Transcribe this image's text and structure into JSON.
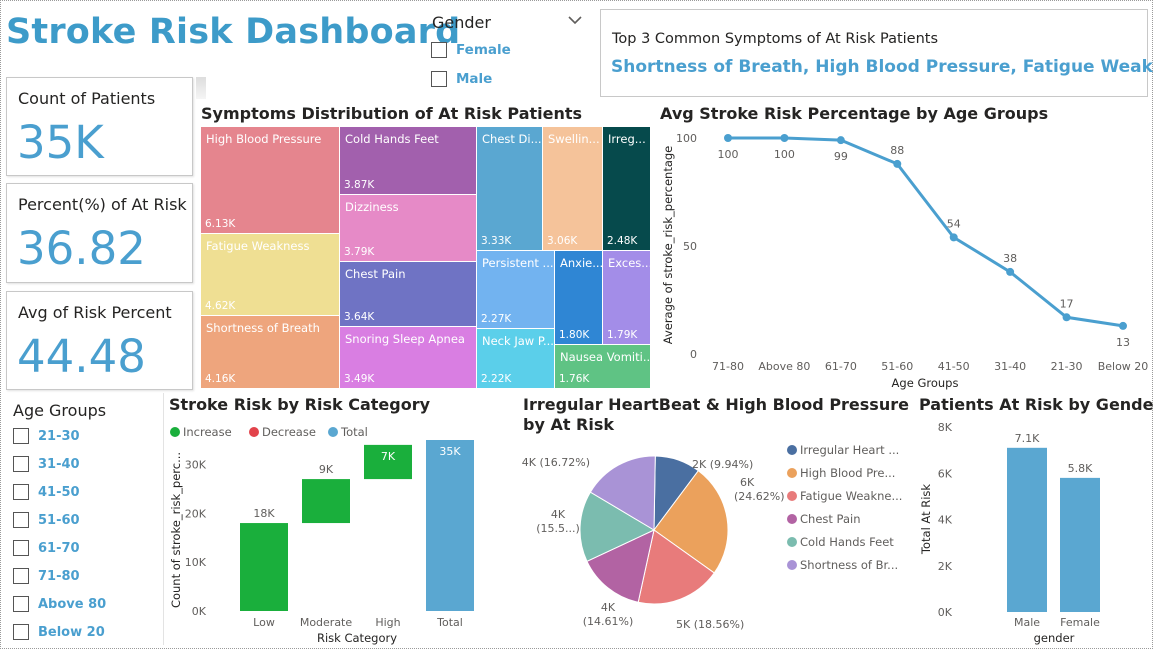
{
  "dashboard": {
    "title": "Stroke Risk Dashboard"
  },
  "kpis": [
    {
      "label": "Count of Patients",
      "value": "35K"
    },
    {
      "label": "Percent(%) of At Risk",
      "value": "36.82"
    },
    {
      "label": "Avg of Risk Percent",
      "value": "44.48"
    }
  ],
  "gender_slicer": {
    "title": "Gender",
    "options": [
      "Female",
      "Male"
    ]
  },
  "age_slicer": {
    "title": "Age Groups",
    "options": [
      "21-30",
      "31-40",
      "41-50",
      "51-60",
      "61-70",
      "71-80",
      "Above 80",
      "Below 20"
    ]
  },
  "top_symptoms": {
    "label": "Top 3 Common Symptoms of At Risk Patients",
    "value": "Shortness of Breath, High Blood Pressure, Fatigue Weakness"
  },
  "colors": {
    "accent": "#4a9fcf",
    "increase": "#1aaf3c",
    "decrease": "#e2434b",
    "total": "#5aa7d1",
    "line": "#4a9fcf"
  },
  "treemap": {
    "title": "Symptoms Distribution of At Risk Patients",
    "chart_data": {
      "type": "treemap",
      "items": [
        {
          "name": "High Blood Pressure",
          "value": "6.13K",
          "color": "#e5858e"
        },
        {
          "name": "Fatigue Weakness",
          "value": "4.62K",
          "color": "#efdf93"
        },
        {
          "name": "Shortness of Breath",
          "value": "4.16K",
          "color": "#eea57d"
        },
        {
          "name": "Cold Hands Feet",
          "value": "3.87K",
          "color": "#a260ad"
        },
        {
          "name": "Dizziness",
          "value": "3.79K",
          "color": "#e68ac7"
        },
        {
          "name": "Chest Pain",
          "value": "3.64K",
          "color": "#6f73c4"
        },
        {
          "name": "Snoring Sleep Apnea",
          "value": "3.49K",
          "color": "#d97ee2"
        },
        {
          "name": "Chest Di...",
          "value": "3.33K",
          "color": "#5aa7d1"
        },
        {
          "name": "Swellin...",
          "value": "3.06K",
          "color": "#f5c39a"
        },
        {
          "name": "Irreg...",
          "value": "2.48K",
          "color": "#064a4c"
        },
        {
          "name": "Persistent ...",
          "value": "2.27K",
          "color": "#72b3f0"
        },
        {
          "name": "Neck Jaw P...",
          "value": "2.22K",
          "color": "#5bcfea"
        },
        {
          "name": "Anxie...",
          "value": "1.80K",
          "color": "#2f86d4"
        },
        {
          "name": "Exces...",
          "value": "1.79K",
          "color": "#a38de8"
        },
        {
          "name": "Nausea Vomiti...",
          "value": "1.76K",
          "color": "#5fc384"
        }
      ]
    }
  },
  "line_chart": {
    "title": "Avg Stroke Risk Percentage by Age Groups",
    "chart_data": {
      "type": "line",
      "x": [
        "71-80",
        "Above 80",
        "61-70",
        "51-60",
        "41-50",
        "31-40",
        "21-30",
        "Below 20"
      ],
      "values": [
        100,
        100,
        99,
        88,
        54,
        38,
        17,
        13
      ],
      "xlabel": "Age Groups",
      "ylabel": "Average of stroke_risk_percentage",
      "yticks": [
        0,
        50,
        100
      ],
      "ylim": [
        0,
        100
      ]
    }
  },
  "waterfall": {
    "title": "Stroke Risk by Risk Category",
    "legend": [
      "Increase",
      "Decrease",
      "Total"
    ],
    "chart_data": {
      "type": "bar",
      "categories": [
        "Low",
        "Moderate",
        "High",
        "Total"
      ],
      "values": [
        18,
        9,
        7,
        35
      ],
      "labels": [
        "18K",
        "9K",
        "7K",
        "35K"
      ],
      "kinds": [
        "increase",
        "increase",
        "increase",
        "total"
      ],
      "xlabel": "Risk Category",
      "ylabel": "Count of stroke_risk_perc...",
      "yticks": [
        "0K",
        "10K",
        "20K",
        "30K"
      ],
      "ylim": [
        0,
        35
      ]
    }
  },
  "pie_chart": {
    "title": "Irregular HeartBeat & High Blood Pressure by At Risk",
    "chart_data": {
      "type": "pie",
      "slices": [
        {
          "name": "Irregular Heart ...",
          "value": 9.94,
          "label": "2K (9.94%)",
          "color": "#4a6fa1"
        },
        {
          "name": "High Blood Pre...",
          "value": 24.62,
          "label": "6K (24.62%)",
          "color": "#eba15c"
        },
        {
          "name": "Fatigue Weakne...",
          "value": 18.56,
          "label": "5K (18.56%)",
          "color": "#e87b7b"
        },
        {
          "name": "Chest Pain",
          "value": 14.61,
          "label": "4K (14.61%)",
          "color": "#b263a3"
        },
        {
          "name": "Cold Hands Feet",
          "value": 15.5,
          "label": "4K (15.5...)",
          "color": "#7bbcaf"
        },
        {
          "name": "Shortness of Br...",
          "value": 16.72,
          "label": "4K (16.72%)",
          "color": "#a993d6"
        }
      ]
    }
  },
  "gender_chart": {
    "title": "Patients At Risk by Gender",
    "chart_data": {
      "type": "bar",
      "categories": [
        "Male",
        "Female"
      ],
      "values": [
        7.1,
        5.8
      ],
      "labels": [
        "7.1K",
        "5.8K"
      ],
      "xlabel": "gender",
      "ylabel": "Total At Risk",
      "yticks": [
        "0K",
        "2K",
        "4K",
        "6K",
        "8K"
      ],
      "ylim": [
        0,
        8
      ]
    }
  }
}
